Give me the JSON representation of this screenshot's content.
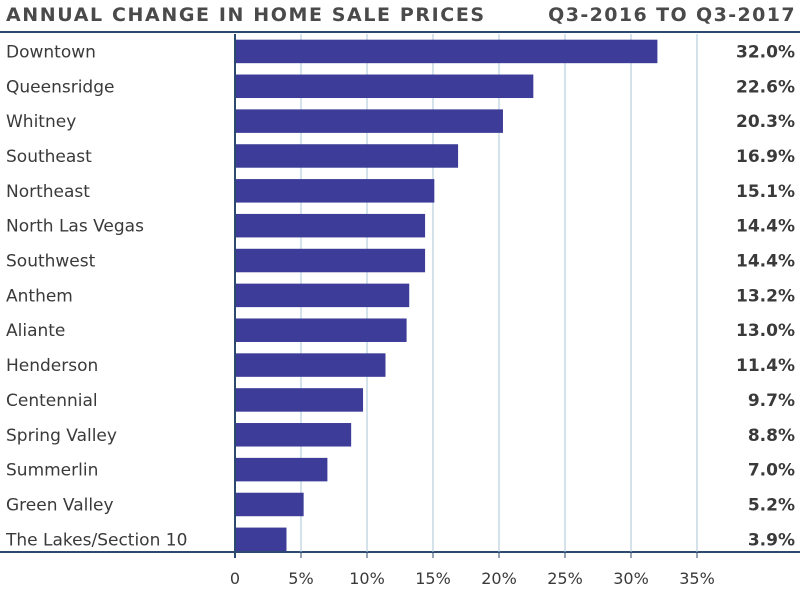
{
  "colors": {
    "bar": "#3d3c98",
    "grid": "#a9c4d8",
    "axis": "#2c4a6e",
    "text": "#3a3a3a"
  },
  "chart_data": {
    "type": "bar",
    "orientation": "horizontal",
    "title": "ANNUAL CHANGE IN HOME SALE PRICES",
    "subtitle": "Q3-2016 TO Q3-2017",
    "categories": [
      "Downtown",
      "Queensridge",
      "Whitney",
      "Southeast",
      "Northeast",
      "North Las Vegas",
      "Southwest",
      "Anthem",
      "Aliante",
      "Henderson",
      "Centennial",
      "Spring Valley",
      "Summerlin",
      "Green Valley",
      "The Lakes/Section 10"
    ],
    "values": [
      32.0,
      22.6,
      20.3,
      16.9,
      15.1,
      14.4,
      14.4,
      13.2,
      13.0,
      11.4,
      9.7,
      8.8,
      7.0,
      5.2,
      3.9
    ],
    "value_labels": [
      "32.0%",
      "22.6%",
      "20.3%",
      "16.9%",
      "15.1%",
      "14.4%",
      "14.4%",
      "13.2%",
      "13.0%",
      "11.4%",
      "9.7%",
      "8.8%",
      "7.0%",
      "5.2%",
      "3.9%"
    ],
    "xlim": [
      0,
      35
    ],
    "xticks": [
      0,
      5,
      10,
      15,
      20,
      25,
      30,
      35
    ],
    "xtick_labels": [
      "0",
      "5%",
      "10%",
      "15%",
      "20%",
      "25%",
      "30%",
      "35%"
    ],
    "grid": true,
    "xlabel": "",
    "ylabel": ""
  }
}
